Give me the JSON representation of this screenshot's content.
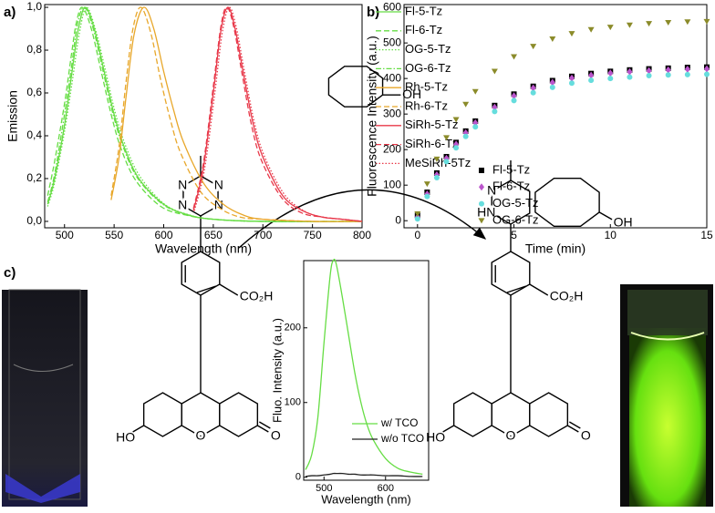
{
  "panel_labels": [
    "a)",
    "b)",
    "c)"
  ],
  "chart_data": [
    {
      "type": "line",
      "xlabel": "Wavelength (nm)",
      "ylabel": "Emission",
      "xlim": [
        480,
        800
      ],
      "ylim": [
        -0.03,
        1.013
      ],
      "xticks": [
        500,
        550,
        600,
        650,
        700,
        750,
        800
      ],
      "yticks": [
        {
          "value": 0,
          "label": "0,0"
        },
        {
          "value": 0.2,
          "label": "0,2"
        },
        {
          "value": 0.4,
          "label": "0,4"
        },
        {
          "value": 0.6,
          "label": "0,6"
        },
        {
          "value": 0.8,
          "label": "0,8"
        },
        {
          "value": 1.0,
          "label": "1,0"
        }
      ],
      "legend": "upper right",
      "series": [
        {
          "name": "Fl-5-Tz",
          "color": "#66dd44",
          "dash": "solid",
          "x": [
            483,
            490,
            500,
            507,
            514,
            521,
            530,
            540,
            550,
            560,
            575,
            600,
            625,
            650,
            700,
            800
          ],
          "values": [
            0.08,
            0.2,
            0.45,
            0.68,
            0.9,
            1.0,
            0.9,
            0.7,
            0.5,
            0.35,
            0.2,
            0.08,
            0.03,
            0.01,
            0.0,
            0.0
          ]
        },
        {
          "name": "Fl-6-Tz",
          "color": "#66dd44",
          "dash": "dashed",
          "x": [
            483,
            490,
            500,
            507,
            512,
            518,
            527,
            537,
            547,
            557,
            572,
            597,
            622,
            650,
            700,
            800
          ],
          "values": [
            0.12,
            0.28,
            0.55,
            0.78,
            0.93,
            1.0,
            0.9,
            0.7,
            0.5,
            0.34,
            0.19,
            0.07,
            0.03,
            0.01,
            0.0,
            0.0
          ]
        },
        {
          "name": "OG-5-Tz",
          "color": "#66dd44",
          "dash": "dotted",
          "x": [
            483,
            490,
            500,
            508,
            515,
            522,
            531,
            541,
            551,
            561,
            576,
            601,
            626,
            650,
            700,
            800
          ],
          "values": [
            0.07,
            0.18,
            0.42,
            0.66,
            0.88,
            1.0,
            0.9,
            0.71,
            0.51,
            0.36,
            0.21,
            0.08,
            0.03,
            0.01,
            0.0,
            0.0
          ]
        },
        {
          "name": "OG-6-Tz",
          "color": "#66dd44",
          "dash": "dashdot",
          "x": [
            483,
            490,
            500,
            507,
            513,
            520,
            529,
            539,
            549,
            559,
            574,
            599,
            624,
            650,
            700,
            800
          ],
          "values": [
            0.09,
            0.22,
            0.5,
            0.72,
            0.92,
            1.0,
            0.9,
            0.7,
            0.5,
            0.35,
            0.2,
            0.08,
            0.03,
            0.01,
            0.0,
            0.0
          ]
        },
        {
          "name": "Rh-5-Tz",
          "color": "#e8a72a",
          "dash": "solid",
          "x": [
            547,
            555,
            562,
            570,
            580,
            590,
            600,
            610,
            620,
            640,
            660,
            680,
            700,
            750,
            800
          ],
          "values": [
            0.1,
            0.3,
            0.58,
            0.87,
            1.0,
            0.9,
            0.7,
            0.52,
            0.37,
            0.18,
            0.08,
            0.03,
            0.01,
            0.0,
            0.0
          ]
        },
        {
          "name": "Rh-6-Tz",
          "color": "#e8a72a",
          "dash": "dashed",
          "x": [
            547,
            555,
            562,
            569,
            577,
            587,
            597,
            607,
            617,
            637,
            657,
            677,
            700,
            750,
            800
          ],
          "values": [
            0.12,
            0.35,
            0.65,
            0.9,
            1.0,
            0.88,
            0.66,
            0.47,
            0.32,
            0.14,
            0.06,
            0.02,
            0.01,
            0.0,
            0.0
          ]
        },
        {
          "name": "SiRh-5-Tz",
          "color": "#e8394a",
          "dash": "solid",
          "x": [
            630,
            640,
            650,
            658,
            665,
            672,
            680,
            690,
            700,
            720,
            740,
            760,
            780,
            800
          ],
          "values": [
            0.05,
            0.25,
            0.6,
            0.9,
            1.0,
            0.9,
            0.7,
            0.46,
            0.3,
            0.12,
            0.05,
            0.02,
            0.01,
            0.0
          ]
        },
        {
          "name": "SiRh-6-Tz",
          "color": "#e8394a",
          "dash": "dashed",
          "x": [
            630,
            640,
            650,
            658,
            664,
            671,
            679,
            689,
            699,
            719,
            739,
            760,
            780,
            800
          ],
          "values": [
            0.06,
            0.27,
            0.63,
            0.92,
            1.0,
            0.9,
            0.69,
            0.44,
            0.28,
            0.11,
            0.04,
            0.02,
            0.01,
            0.0
          ]
        },
        {
          "name": "MeSiRh-5Tz",
          "color": "#e8394a",
          "dash": "dotted",
          "x": [
            631,
            641,
            651,
            659,
            666,
            673,
            681,
            691,
            701,
            721,
            741,
            760,
            780,
            800
          ],
          "values": [
            0.05,
            0.24,
            0.58,
            0.88,
            1.0,
            0.91,
            0.71,
            0.47,
            0.31,
            0.13,
            0.05,
            0.02,
            0.01,
            0.0
          ]
        }
      ]
    },
    {
      "type": "scatter",
      "xlabel": "Time (min)",
      "ylabel": "Fluorescence Intensity (a.u.)",
      "xlim": [
        -0.7,
        15
      ],
      "ylim": [
        -20,
        608
      ],
      "xticks": [
        0,
        5,
        10,
        15
      ],
      "yticks": [
        0,
        100,
        200,
        300,
        400,
        500,
        600
      ],
      "legend": "lower right",
      "x": [
        0,
        0.5,
        1,
        1.5,
        2,
        2.5,
        3,
        4,
        5,
        6,
        7,
        8,
        9,
        10,
        11,
        12,
        13,
        14,
        15
      ],
      "series": [
        {
          "name": "Fl-5-Tz",
          "color": "#000000",
          "marker": "square",
          "values": [
            15,
            80,
            134,
            180,
            220,
            252,
            280,
            324,
            356,
            378,
            394,
            406,
            414,
            420,
            424,
            427,
            429,
            431,
            432
          ]
        },
        {
          "name": "Fl-6-Tz",
          "color": "#bb55cc",
          "marker": "diamond",
          "values": [
            10,
            75,
            129,
            175,
            215,
            247,
            275,
            319,
            351,
            373,
            389,
            401,
            409,
            415,
            419,
            422,
            424,
            426,
            427
          ]
        },
        {
          "name": "OG-5-Tz",
          "color": "#66dddd",
          "marker": "circle",
          "values": [
            5,
            68,
            121,
            166,
            205,
            237,
            264,
            307,
            338,
            360,
            375,
            387,
            395,
            400,
            404,
            408,
            410,
            411,
            412
          ]
        },
        {
          "name": "OG-6-Tz",
          "color": "#8b8b2a",
          "marker": "triangle-down",
          "values": [
            20,
            104,
            174,
            234,
            285,
            328,
            364,
            421,
            462,
            491,
            512,
            527,
            538,
            545,
            551,
            555,
            558,
            560,
            561
          ]
        }
      ]
    },
    {
      "type": "line",
      "xlabel": "Wavelength (nm)",
      "ylabel": "Fluo. Intensity (a.u.)",
      "xlim": [
        467,
        670
      ],
      "ylim": [
        -4,
        290
      ],
      "xticks": [
        500,
        600
      ],
      "yticks": [
        0,
        100,
        200
      ],
      "legend": "right",
      "x": [
        470,
        480,
        490,
        500,
        510,
        515,
        520,
        530,
        540,
        550,
        560,
        570,
        580,
        600,
        620,
        640,
        660
      ],
      "series": [
        {
          "name": "w/ TCO",
          "color": "#66dd44",
          "dash": "solid",
          "values": [
            10,
            30,
            80,
            180,
            270,
            290,
            285,
            240,
            190,
            140,
            100,
            70,
            50,
            25,
            12,
            7,
            4
          ]
        },
        {
          "name": "w/o TCO",
          "color": "#222222",
          "dash": "solid",
          "values": [
            1,
            2,
            2,
            3,
            4,
            5,
            5,
            5,
            4,
            4,
            3,
            3,
            3,
            2,
            2,
            1,
            1
          ]
        }
      ]
    }
  ],
  "scheme": {
    "tco_label": "OH",
    "left_labels": [
      "N",
      "N",
      "N",
      "N",
      "CO₂H",
      "HO",
      "O",
      "O"
    ],
    "right_labels": [
      "HN",
      "N",
      "CO₂H",
      "OH",
      "HO",
      "O",
      "O"
    ]
  }
}
